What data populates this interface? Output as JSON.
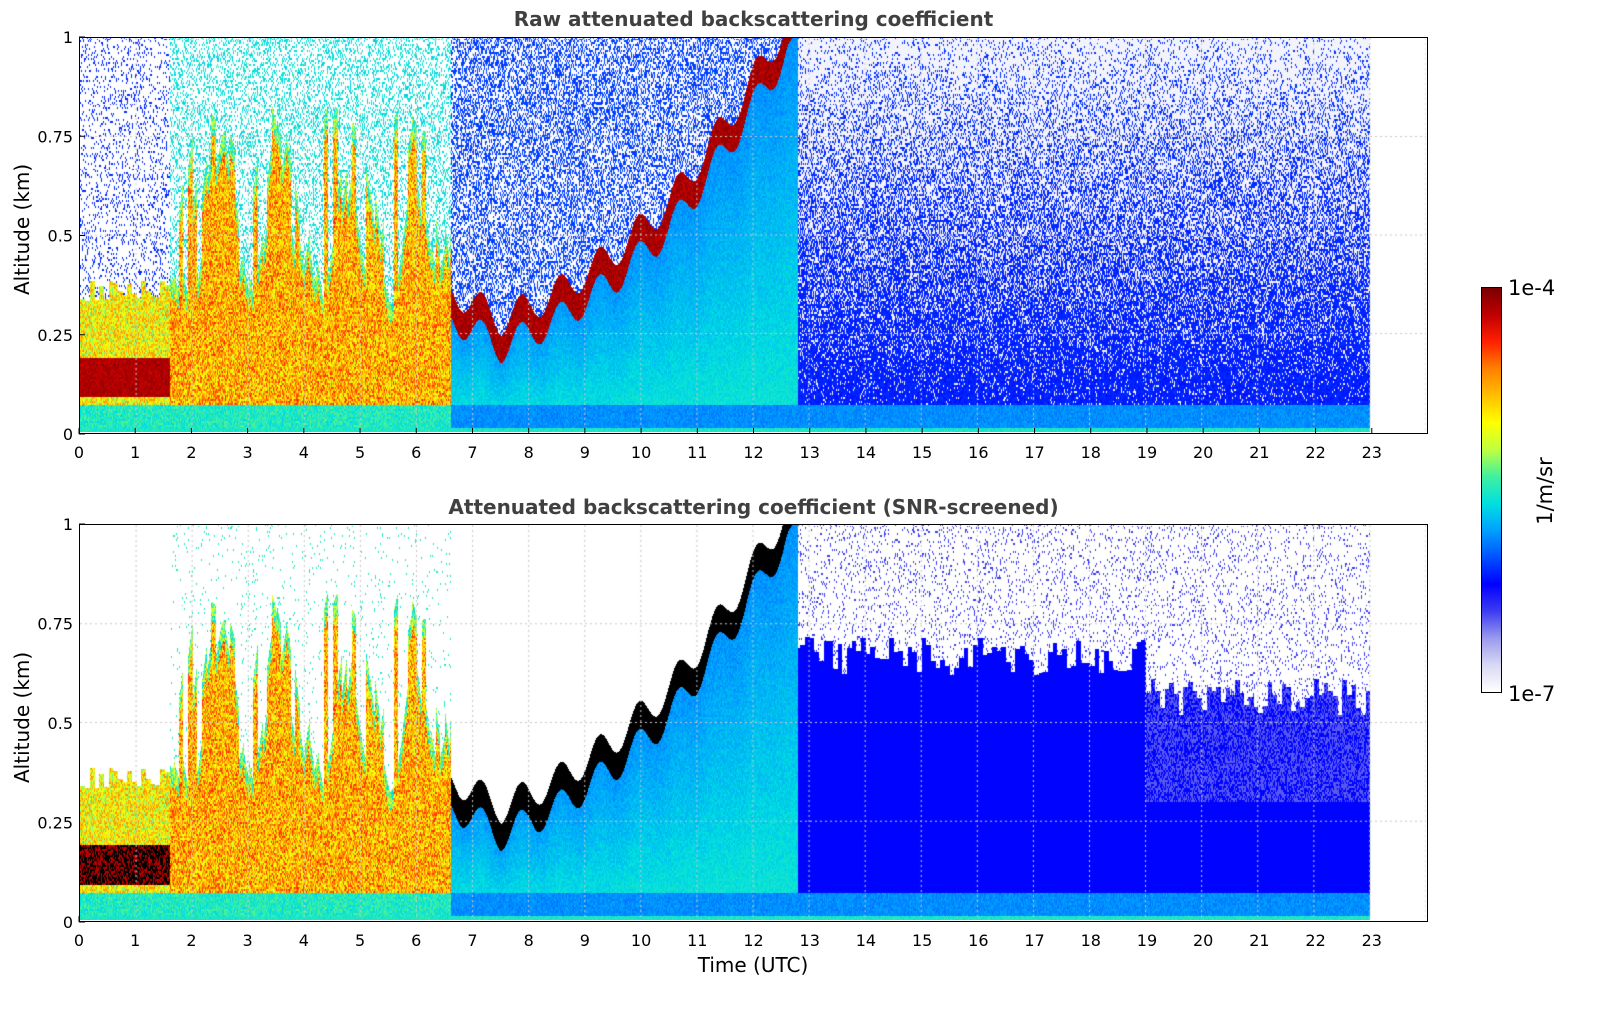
{
  "colors": {
    "colormap": [
      "#ffffff",
      "#d8d8f4",
      "#9a9aee",
      "#3c3cf2",
      "#0000ff",
      "#0050ff",
      "#00a0ff",
      "#00e0e0",
      "#40f0a0",
      "#c0ff40",
      "#ffff00",
      "#ffc000",
      "#ff8000",
      "#ff2000",
      "#c00000",
      "#7a0000"
    ],
    "saturated": "#000000",
    "grid": "#c8c8c8"
  },
  "chart_data": [
    {
      "type": "heatmap",
      "title": "Raw attenuated backscattering coefficient",
      "xlabel": "",
      "ylabel": "Altitude (km)",
      "xlim": [
        0,
        24
      ],
      "ylim": [
        0,
        1
      ],
      "xticks": [
        "0",
        "1",
        "2",
        "3",
        "4",
        "5",
        "6",
        "7",
        "8",
        "9",
        "10",
        "11",
        "12",
        "13",
        "14",
        "15",
        "16",
        "17",
        "18",
        "19",
        "20",
        "21",
        "22",
        "23"
      ],
      "yticks": [
        "0",
        "0.25",
        "0.5",
        "0.75",
        "1"
      ],
      "data_end_time": 23,
      "grid": true,
      "screened": false,
      "colorbar": "right",
      "layer_features": [
        {
          "name": "low stratocumulus layer",
          "time_range": [
            0,
            1.6
          ],
          "altitude_km": 0.14
        },
        {
          "name": "rising boundary-layer top",
          "time_points": [
            6.7,
            7.5,
            8.5,
            9.5,
            10.5,
            11.5,
            12.6
          ],
          "altitude_km": [
            0.32,
            0.25,
            0.32,
            0.42,
            0.55,
            0.75,
            1.0
          ]
        }
      ]
    },
    {
      "type": "heatmap",
      "title": "Attenuated backscattering coefficient (SNR-screened)",
      "xlabel": "Time (UTC)",
      "ylabel": "Altitude (km)",
      "xlim": [
        0,
        24
      ],
      "ylim": [
        0,
        1
      ],
      "xticks": [
        "0",
        "1",
        "2",
        "3",
        "4",
        "5",
        "6",
        "7",
        "8",
        "9",
        "10",
        "11",
        "12",
        "13",
        "14",
        "15",
        "16",
        "17",
        "18",
        "19",
        "20",
        "21",
        "22",
        "23"
      ],
      "yticks": [
        "0",
        "0.25",
        "0.5",
        "0.75",
        "1"
      ],
      "data_end_time": 23,
      "grid": true,
      "screened": true,
      "colorbar": "right"
    }
  ],
  "colorbar": {
    "max_label": "1e-4",
    "min_label": "1e-7",
    "unit_label": "1/m/sr",
    "range": [
      1e-07,
      0.0001
    ],
    "scale": "log"
  }
}
